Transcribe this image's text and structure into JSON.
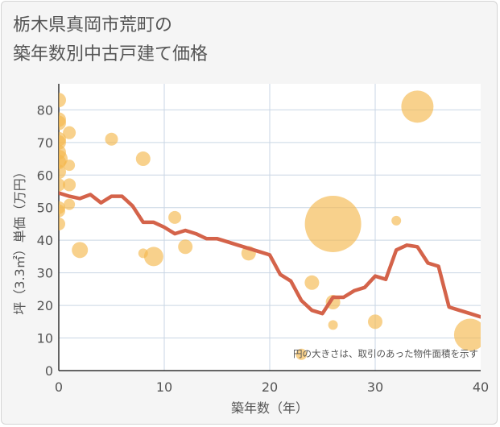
{
  "title_line1": "栃木県真岡市荒町の",
  "title_line2": "築年数別中古戸建て価格",
  "colors": {
    "bubble": "#f5b94e",
    "line": "#d4634a",
    "grid": "#c9d6e4",
    "background": "#f5f5f5",
    "plot_background": "#ffffff"
  },
  "chart_data": {
    "type": "scatter",
    "title": "栃木県真岡市荒町の築年数別中古戸建て価格",
    "xlabel": "築年数（年）",
    "ylabel": "坪（3.3㎡）単価（万円）",
    "xlim": [
      0,
      40
    ],
    "ylim": [
      0,
      88
    ],
    "xticks": [
      0,
      10,
      20,
      30,
      40
    ],
    "yticks": [
      0,
      10,
      20,
      30,
      40,
      50,
      60,
      70,
      80
    ],
    "grid": true,
    "annotation": "円の大きさは、取引のあった物件面積を示す",
    "series": [
      {
        "type": "bubble",
        "points": [
          {
            "x": 0,
            "y": 83,
            "r": 9
          },
          {
            "x": 0,
            "y": 77,
            "r": 9
          },
          {
            "x": 0,
            "y": 76,
            "r": 9
          },
          {
            "x": 0,
            "y": 71,
            "r": 9
          },
          {
            "x": 0,
            "y": 70,
            "r": 9
          },
          {
            "x": 0,
            "y": 67,
            "r": 9
          },
          {
            "x": 0,
            "y": 65,
            "r": 11
          },
          {
            "x": 0,
            "y": 64,
            "r": 9
          },
          {
            "x": 0,
            "y": 61,
            "r": 9
          },
          {
            "x": 0,
            "y": 57,
            "r": 8
          },
          {
            "x": 0,
            "y": 50,
            "r": 8
          },
          {
            "x": 0,
            "y": 49,
            "r": 8
          },
          {
            "x": 0,
            "y": 45,
            "r": 8
          },
          {
            "x": 1,
            "y": 73,
            "r": 8
          },
          {
            "x": 1,
            "y": 63,
            "r": 7
          },
          {
            "x": 1,
            "y": 57,
            "r": 8
          },
          {
            "x": 1,
            "y": 51,
            "r": 7
          },
          {
            "x": 2,
            "y": 37,
            "r": 10
          },
          {
            "x": 5,
            "y": 71,
            "r": 8
          },
          {
            "x": 8,
            "y": 65,
            "r": 9
          },
          {
            "x": 8,
            "y": 36,
            "r": 6
          },
          {
            "x": 9,
            "y": 35,
            "r": 12
          },
          {
            "x": 11,
            "y": 47,
            "r": 8
          },
          {
            "x": 12,
            "y": 38,
            "r": 9
          },
          {
            "x": 18,
            "y": 36,
            "r": 9
          },
          {
            "x": 23,
            "y": 5,
            "r": 7
          },
          {
            "x": 24,
            "y": 27,
            "r": 9
          },
          {
            "x": 26,
            "y": 45,
            "r": 35
          },
          {
            "x": 26,
            "y": 21,
            "r": 9
          },
          {
            "x": 26,
            "y": 14,
            "r": 6
          },
          {
            "x": 30,
            "y": 15,
            "r": 9
          },
          {
            "x": 32,
            "y": 46,
            "r": 6
          },
          {
            "x": 34,
            "y": 81,
            "r": 20
          },
          {
            "x": 39,
            "y": 11,
            "r": 20
          }
        ]
      },
      {
        "type": "line",
        "x": [
          0,
          1,
          2,
          3,
          4,
          5,
          6,
          7,
          8,
          9,
          10,
          11,
          12,
          13,
          14,
          15,
          16,
          17,
          18,
          19,
          20,
          21,
          22,
          23,
          24,
          25,
          26,
          27,
          28,
          29,
          30,
          31,
          32,
          33,
          34,
          35,
          36,
          37,
          38,
          39,
          40
        ],
        "y": [
          54.5,
          53.5,
          52.8,
          54,
          51.5,
          53.5,
          53.5,
          50.5,
          45.5,
          45.5,
          44,
          42,
          43,
          42,
          40.5,
          40.5,
          39.5,
          38.5,
          37.5,
          36.5,
          35.5,
          29.5,
          27.5,
          21.5,
          18.5,
          17.5,
          22.5,
          22.5,
          24.5,
          25.5,
          29,
          28,
          37,
          38.5,
          38,
          33,
          32,
          19.5,
          18.5,
          17.5,
          16.5
        ]
      }
    ]
  }
}
